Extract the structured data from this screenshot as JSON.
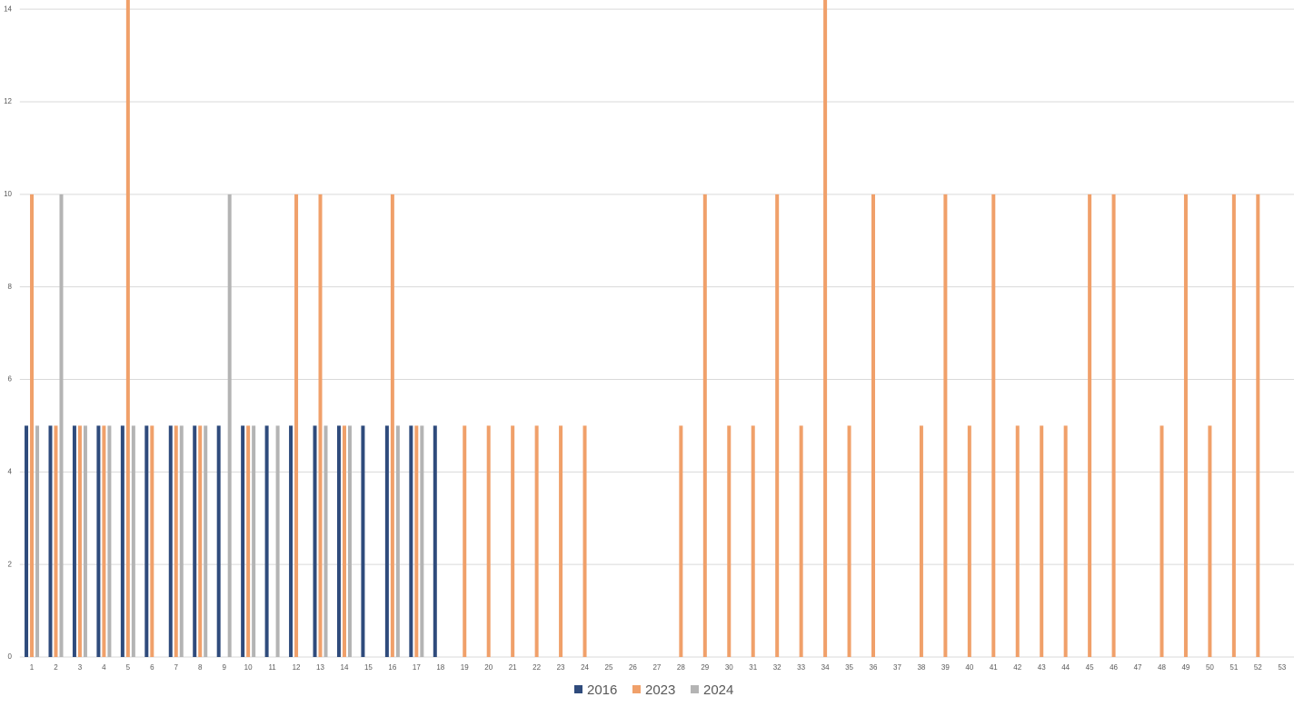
{
  "chart_data": {
    "type": "bar",
    "categories": [
      "1",
      "2",
      "3",
      "4",
      "5",
      "6",
      "7",
      "8",
      "9",
      "10",
      "11",
      "12",
      "13",
      "14",
      "15",
      "16",
      "17",
      "18",
      "19",
      "20",
      "21",
      "22",
      "23",
      "24",
      "25",
      "26",
      "27",
      "28",
      "29",
      "30",
      "31",
      "32",
      "33",
      "34",
      "35",
      "36",
      "37",
      "38",
      "39",
      "40",
      "41",
      "42",
      "43",
      "44",
      "45",
      "46",
      "47",
      "48",
      "49",
      "50",
      "51",
      "52",
      "53"
    ],
    "series": [
      {
        "name": "2016",
        "color": "#2f4b7c",
        "values": [
          5,
          5,
          5,
          5,
          5,
          5,
          5,
          5,
          5,
          5,
          5,
          5,
          5,
          5,
          5,
          5,
          5,
          5,
          0,
          0,
          0,
          0,
          0,
          0,
          0,
          0,
          0,
          0,
          0,
          0,
          0,
          0,
          0,
          0,
          0,
          0,
          0,
          0,
          0,
          0,
          0,
          0,
          0,
          0,
          0,
          0,
          0,
          0,
          0,
          0,
          0,
          0,
          0
        ]
      },
      {
        "name": "2023",
        "color": "#f0a06a",
        "values": [
          10,
          5,
          5,
          5,
          15,
          5,
          5,
          5,
          0,
          5,
          0,
          10,
          10,
          5,
          0,
          10,
          5,
          0,
          5,
          5,
          5,
          5,
          5,
          5,
          0,
          0,
          0,
          5,
          10,
          5,
          5,
          10,
          5,
          15,
          5,
          10,
          0,
          5,
          10,
          5,
          10,
          5,
          5,
          5,
          10,
          10,
          0,
          5,
          10,
          5,
          10,
          10,
          0
        ]
      },
      {
        "name": "2024",
        "color": "#b4b4b4",
        "values": [
          5,
          10,
          5,
          5,
          5,
          0,
          5,
          5,
          10,
          5,
          5,
          0,
          5,
          5,
          0,
          5,
          5,
          0,
          0,
          0,
          0,
          0,
          0,
          0,
          0,
          0,
          0,
          0,
          0,
          0,
          0,
          0,
          0,
          0,
          0,
          0,
          0,
          0,
          0,
          0,
          0,
          0,
          0,
          0,
          0,
          0,
          0,
          0,
          0,
          0,
          0,
          0,
          0
        ]
      }
    ],
    "ylim": [
      0,
      14.2
    ],
    "yticks": [
      0,
      2,
      4,
      6,
      8,
      10,
      12,
      14
    ],
    "grid": true,
    "legend": "bottom"
  }
}
